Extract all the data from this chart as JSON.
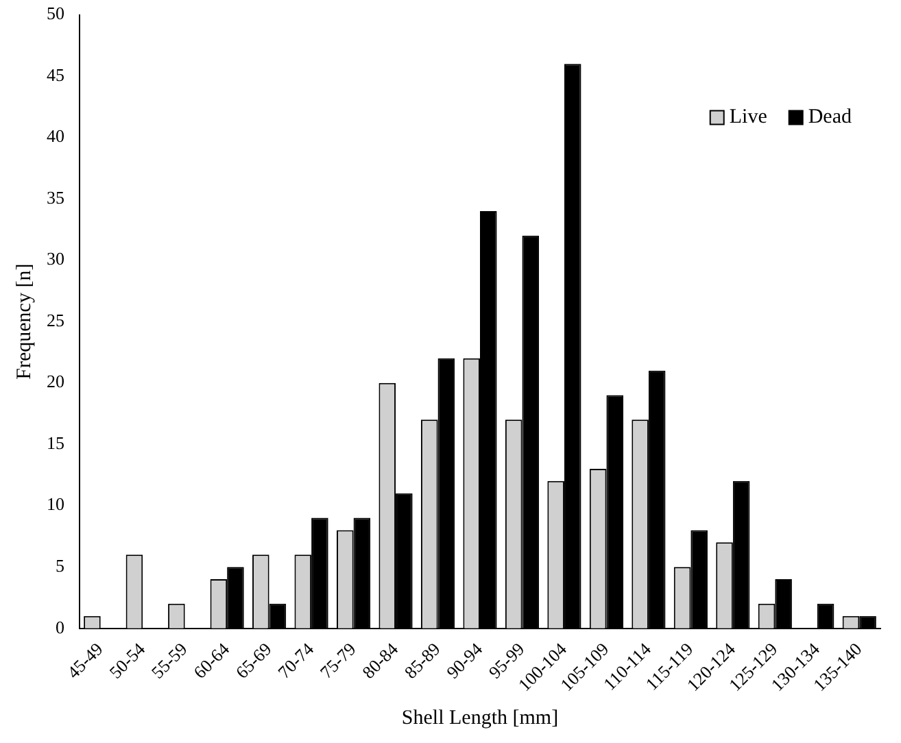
{
  "chart_data": {
    "type": "bar",
    "xlabel": "Shell Length [mm]",
    "ylabel": "Frequency [n]",
    "categories": [
      "45-49",
      "50-54",
      "55-59",
      "60-64",
      "65-69",
      "70-74",
      "75-79",
      "80-84",
      "85-89",
      "90-94",
      "95-99",
      "100-104",
      "105-109",
      "110-114",
      "115-119",
      "120-124",
      "125-129",
      "130-134",
      "135-140"
    ],
    "series": [
      {
        "name": "Live",
        "color": "#d0d0d0",
        "values": [
          1,
          6,
          2,
          4,
          6,
          6,
          8,
          20,
          17,
          22,
          17,
          12,
          13,
          17,
          5,
          7,
          2,
          0,
          1
        ]
      },
      {
        "name": "Dead",
        "color": "#000000",
        "values": [
          0,
          0,
          0,
          5,
          2,
          9,
          9,
          11,
          22,
          34,
          32,
          46,
          19,
          21,
          8,
          12,
          4,
          2,
          1
        ]
      }
    ],
    "ylim": [
      0,
      50
    ],
    "yticks": [
      0,
      5,
      10,
      15,
      20,
      25,
      30,
      35,
      40,
      45,
      50
    ],
    "grid": false,
    "legend": "top right"
  }
}
